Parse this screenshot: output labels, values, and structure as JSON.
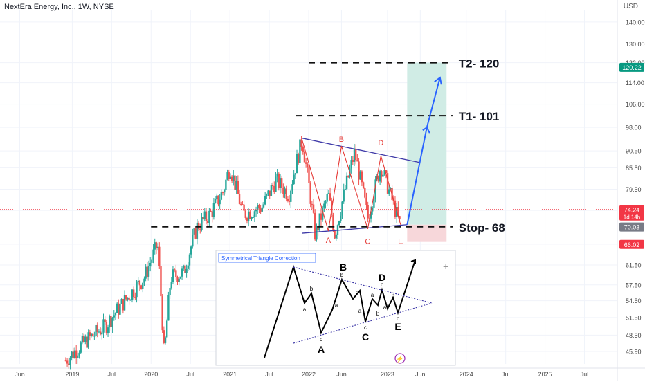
{
  "header": {
    "symbol_line": "NextEra Energy, Inc., 1W, NYSE",
    "currency": "USD"
  },
  "colors": {
    "up": "#26a69a",
    "down": "#ef5350",
    "annot": "#131722",
    "wave": "#e53935",
    "trend": "#3f3aa8",
    "target": "#2962ff",
    "profit_zone": "#d0ece5",
    "stop_zone": "#f7d7da"
  },
  "chart_data": {
    "type": "candlestick",
    "y_axis": {
      "min": 44,
      "max": 146,
      "scale": "log",
      "ticks": [
        140.0,
        130.0,
        122.0,
        114.0,
        106.0,
        98.0,
        90.5,
        85.5,
        79.5,
        74.0,
        66.0,
        61.5,
        57.5,
        54.5,
        51.5,
        48.5,
        45.9
      ]
    },
    "x_axis": {
      "start": "2018-02",
      "end": "2025-12",
      "ticks": [
        {
          "date": "2018-05",
          "label": "Jun"
        },
        {
          "date": "2019-01",
          "label": "2019"
        },
        {
          "date": "2019-07",
          "label": "Jul"
        },
        {
          "date": "2020-01",
          "label": "2020"
        },
        {
          "date": "2020-07",
          "label": "Jul"
        },
        {
          "date": "2021-01",
          "label": "2021"
        },
        {
          "date": "2021-07",
          "label": "Jul"
        },
        {
          "date": "2022-01",
          "label": "2022"
        },
        {
          "date": "2022-06",
          "label": "Jun"
        },
        {
          "date": "2023-01",
          "label": "2023"
        },
        {
          "date": "2023-06",
          "label": "Jun"
        },
        {
          "date": "2024-01",
          "label": "2024"
        },
        {
          "date": "2024-07",
          "label": "Jul"
        },
        {
          "date": "2025-01",
          "label": "2025"
        },
        {
          "date": "2025-07",
          "label": "Jul"
        }
      ]
    },
    "price_path": [
      [
        "2018-12",
        44.5
      ],
      [
        "2019-03",
        47.5
      ],
      [
        "2019-06",
        50
      ],
      [
        "2019-09",
        54.5
      ],
      [
        "2019-12",
        59
      ],
      [
        "2020-02",
        66
      ],
      [
        "2020-03",
        45
      ],
      [
        "2020-04",
        59
      ],
      [
        "2020-06",
        60
      ],
      [
        "2020-08",
        70
      ],
      [
        "2020-10",
        73
      ],
      [
        "2020-12",
        79
      ],
      [
        "2021-01",
        86
      ],
      [
        "2021-03",
        73
      ],
      [
        "2021-06",
        75
      ],
      [
        "2021-08",
        82
      ],
      [
        "2021-10",
        78
      ],
      [
        "2021-12",
        94
      ],
      [
        "2022-02",
        68
      ],
      [
        "2022-04",
        78
      ],
      [
        "2022-05",
        68
      ],
      [
        "2022-08",
        90
      ],
      [
        "2022-10",
        72
      ],
      [
        "2022-12",
        86
      ],
      [
        "2023-02",
        75
      ],
      [
        "2023-03",
        70
      ]
    ],
    "price_labels": [
      {
        "value": 120.22,
        "text": "120.22",
        "bg": "#089981"
      },
      {
        "value": 74.24,
        "text": "74.24",
        "sub": "1d 14h",
        "bg": "#f23645"
      },
      {
        "value": 70.03,
        "text": "70.03",
        "bg": "#787b86"
      },
      {
        "value": 66.02,
        "text": "66.02",
        "bg": "#f23645"
      }
    ],
    "levels": [
      {
        "label": "T2- 120",
        "value": 122,
        "from": "2022-01",
        "to": "2023-11"
      },
      {
        "label": "T1- 101",
        "value": 102,
        "from": "2021-11",
        "to": "2023-11"
      },
      {
        "label": "Stop- 68",
        "value": 70,
        "from": "2020-01",
        "to": "2023-11"
      }
    ],
    "wave_labels": [
      {
        "text": "A",
        "date": "2022-04",
        "value": 68.5,
        "color": "#e53935"
      },
      {
        "text": "B",
        "date": "2022-06",
        "value": 92,
        "color": "#e53935"
      },
      {
        "text": "C",
        "date": "2022-10",
        "value": 68.3,
        "color": "#e53935"
      },
      {
        "text": "D",
        "date": "2022-12",
        "value": 91,
        "color": "#e53935"
      },
      {
        "text": "E",
        "date": "2023-03",
        "value": 68.3,
        "color": "#e53935"
      }
    ],
    "inset": {
      "title": "Symmetrical Triangle Correction",
      "labels": {
        "A": "A",
        "B": "B",
        "C": "C",
        "D": "D",
        "E": "E",
        "a": "a",
        "b": "b",
        "c": "c"
      }
    }
  }
}
